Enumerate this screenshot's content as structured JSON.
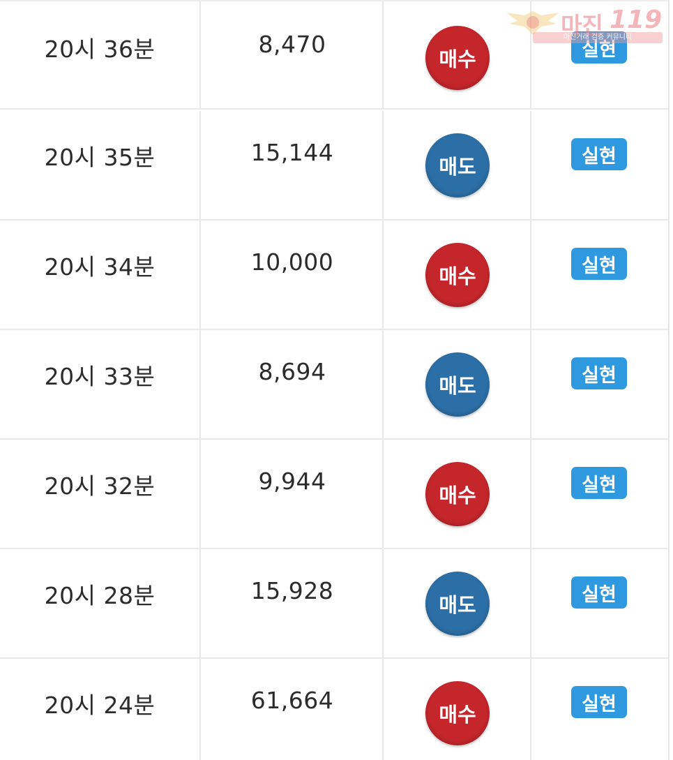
{
  "rows": [
    {
      "time": "20시 36분",
      "value": "8,470",
      "type": "매수",
      "kind": "buy",
      "status": "실현"
    },
    {
      "time": "20시 35분",
      "value": "15,144",
      "type": "매도",
      "kind": "sell",
      "status": "실현"
    },
    {
      "time": "20시 34분",
      "value": "10,000",
      "type": "매수",
      "kind": "buy",
      "status": "실현"
    },
    {
      "time": "20시 33분",
      "value": "8,694",
      "type": "매도",
      "kind": "sell",
      "status": "실현"
    },
    {
      "time": "20시 32분",
      "value": "9,944",
      "type": "매수",
      "kind": "buy",
      "status": "실현"
    },
    {
      "time": "20시 28분",
      "value": "15,928",
      "type": "매도",
      "kind": "sell",
      "status": "실현"
    },
    {
      "time": "20시 24분",
      "value": "61,664",
      "type": "매수",
      "kind": "buy",
      "status": "실현"
    }
  ],
  "watermark": {
    "brand": "마진",
    "number": "119",
    "tagline": "마진거래 검증 커뮤니티"
  },
  "colors": {
    "buy": "#c4262b",
    "sell": "#2c6fa6",
    "badge": "#2f99e0"
  }
}
